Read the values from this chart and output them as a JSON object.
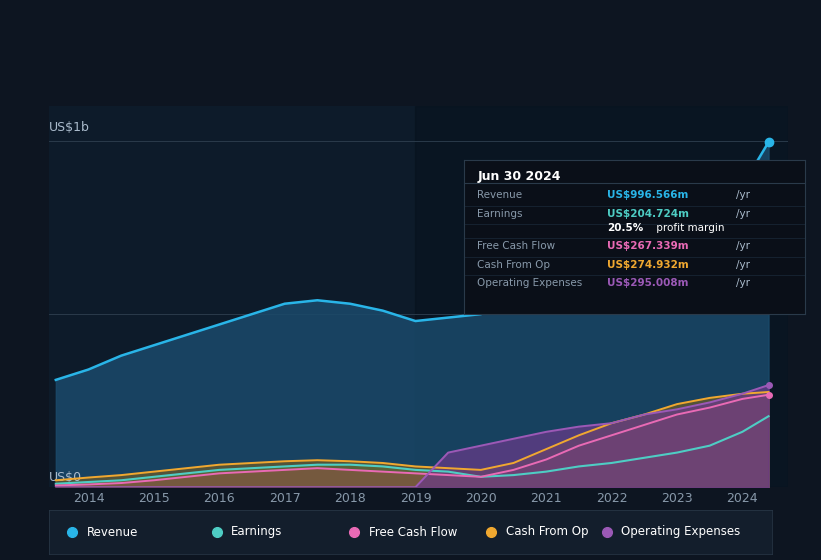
{
  "bg_color": "#0d1521",
  "plot_bg_color": "#0d1b2a",
  "title_y_label": "US$1b",
  "zero_label": "US$0",
  "x_ticks": [
    2014,
    2015,
    2016,
    2017,
    2018,
    2019,
    2020,
    2021,
    2022,
    2023,
    2024
  ],
  "years": [
    2013.5,
    2014.0,
    2014.5,
    2015.0,
    2015.5,
    2016.0,
    2016.5,
    2017.0,
    2017.5,
    2018.0,
    2018.5,
    2019.0,
    2019.5,
    2020.0,
    2020.5,
    2021.0,
    2021.5,
    2022.0,
    2022.5,
    2023.0,
    2023.5,
    2024.0,
    2024.4
  ],
  "revenue": [
    310,
    340,
    380,
    410,
    440,
    470,
    500,
    530,
    540,
    530,
    510,
    480,
    490,
    500,
    530,
    560,
    580,
    560,
    580,
    650,
    750,
    870,
    997
  ],
  "earnings": [
    10,
    15,
    20,
    30,
    40,
    50,
    55,
    60,
    65,
    65,
    60,
    50,
    45,
    30,
    35,
    45,
    60,
    70,
    85,
    100,
    120,
    160,
    205
  ],
  "free_cash_flow": [
    5,
    8,
    12,
    20,
    30,
    40,
    45,
    50,
    55,
    50,
    45,
    40,
    35,
    30,
    50,
    80,
    120,
    150,
    180,
    210,
    230,
    255,
    267
  ],
  "cash_from_op": [
    20,
    28,
    35,
    45,
    55,
    65,
    70,
    75,
    78,
    75,
    70,
    60,
    55,
    50,
    70,
    110,
    150,
    185,
    210,
    240,
    258,
    270,
    275
  ],
  "op_expenses": [
    0,
    0,
    0,
    0,
    0,
    0,
    0,
    0,
    0,
    0,
    0,
    0,
    100,
    120,
    140,
    160,
    175,
    185,
    210,
    225,
    245,
    270,
    295
  ],
  "revenue_color": "#29b5e8",
  "earnings_color": "#4ecdc4",
  "fcf_color": "#e96ab5",
  "cashop_color": "#f0a830",
  "opex_color": "#9b59b6",
  "revenue_fill": "#1a4a6b",
  "earnings_fill": "#2d7a5a",
  "fcf_fill": "#a0407a",
  "cashop_fill": "#7a6020",
  "opex_fill": "#6a3a8a",
  "legend_items": [
    "Revenue",
    "Earnings",
    "Free Cash Flow",
    "Cash From Op",
    "Operating Expenses"
  ],
  "legend_colors": [
    "#29b5e8",
    "#4ecdc4",
    "#e96ab5",
    "#f0a830",
    "#9b59b6"
  ],
  "tooltip_date": "Jun 30 2024",
  "tooltip_rows": [
    [
      "Revenue",
      "US$996.566m",
      "#29b5e8",
      "/yr"
    ],
    [
      "Earnings",
      "US$204.724m",
      "#4ecdc4",
      "/yr"
    ],
    [
      "",
      "20.5% profit margin",
      "#ffffff",
      ""
    ],
    [
      "Free Cash Flow",
      "US$267.339m",
      "#e96ab5",
      "/yr"
    ],
    [
      "Cash From Op",
      "US$274.932m",
      "#f0a830",
      "/yr"
    ],
    [
      "Operating Expenses",
      "US$295.008m",
      "#9b59b6",
      "/yr"
    ]
  ],
  "overlay_x_start": 2019.0,
  "ylim": [
    0,
    1100
  ],
  "xlim": [
    2013.4,
    2024.7
  ]
}
